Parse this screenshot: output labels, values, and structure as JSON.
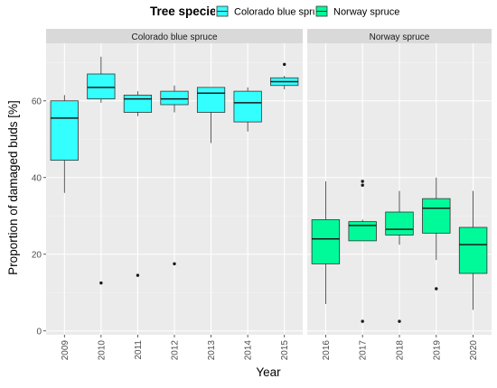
{
  "chart_data": {
    "type": "boxplot",
    "xlabel": "Year",
    "ylabel": "Proportion of damaged buds [%]",
    "ylim": [
      -1,
      75
    ],
    "yticks": [
      0,
      20,
      40,
      60
    ],
    "grid": true,
    "legend": {
      "title": "Tree species",
      "position": "top",
      "entries": [
        "Colorado blue spruce",
        "Norway spruce"
      ]
    },
    "series": [
      {
        "name": "Colorado blue spruce",
        "color": "#33FFFF",
        "boxes": [
          {
            "category": "2009",
            "whisker_low": 36,
            "q1": 44.5,
            "median": 55.5,
            "q3": 60,
            "whisker_high": 61.5,
            "outliers": []
          },
          {
            "category": "2010",
            "whisker_low": 59.5,
            "q1": 60.5,
            "median": 63.5,
            "q3": 67,
            "whisker_high": 71.5,
            "outliers": [
              12.5
            ]
          },
          {
            "category": "2011",
            "whisker_low": 56,
            "q1": 57,
            "median": 60.5,
            "q3": 61.5,
            "whisker_high": 62.5,
            "outliers": [
              14.5
            ]
          },
          {
            "category": "2012",
            "whisker_low": 57,
            "q1": 59,
            "median": 60.5,
            "q3": 62.5,
            "whisker_high": 64,
            "outliers": [
              17.5
            ]
          },
          {
            "category": "2013",
            "whisker_low": 49,
            "q1": 57,
            "median": 62,
            "q3": 63.5,
            "whisker_high": 63.5,
            "outliers": []
          },
          {
            "category": "2014",
            "whisker_low": 52,
            "q1": 54.5,
            "median": 59.5,
            "q3": 62.5,
            "whisker_high": 63.5,
            "outliers": []
          },
          {
            "category": "2015",
            "whisker_low": 63,
            "q1": 64,
            "median": 65,
            "q3": 66,
            "whisker_high": 66.5,
            "outliers": [
              69.5
            ]
          }
        ]
      },
      {
        "name": "Norway spruce",
        "color": "#00FA9A",
        "boxes": [
          {
            "category": "2016",
            "whisker_low": 7,
            "q1": 17.5,
            "median": 24,
            "q3": 29,
            "whisker_high": 39,
            "outliers": []
          },
          {
            "category": "2017",
            "whisker_low": 23.5,
            "q1": 23.5,
            "median": 27.5,
            "q3": 28.5,
            "whisker_high": 29,
            "outliers": [
              2.5,
              38,
              39
            ]
          },
          {
            "category": "2018",
            "whisker_low": 22.5,
            "q1": 25,
            "median": 26.5,
            "q3": 31,
            "whisker_high": 36.5,
            "outliers": [
              2.5
            ]
          },
          {
            "category": "2019",
            "whisker_low": 18.5,
            "q1": 25.5,
            "median": 32,
            "q3": 34.5,
            "whisker_high": 40,
            "outliers": [
              11
            ]
          },
          {
            "category": "2020",
            "whisker_low": 5.5,
            "q1": 15,
            "median": 22.5,
            "q3": 27,
            "whisker_high": 36.5,
            "outliers": []
          }
        ]
      }
    ]
  },
  "colors": {
    "panel_background": "#EBEBEB",
    "strip_background": "#D9D9D9",
    "grid_major": "#FFFFFF",
    "grid_minor": "#F5F5F5",
    "axis_text": "#4D4D4D",
    "text": "#000000"
  }
}
